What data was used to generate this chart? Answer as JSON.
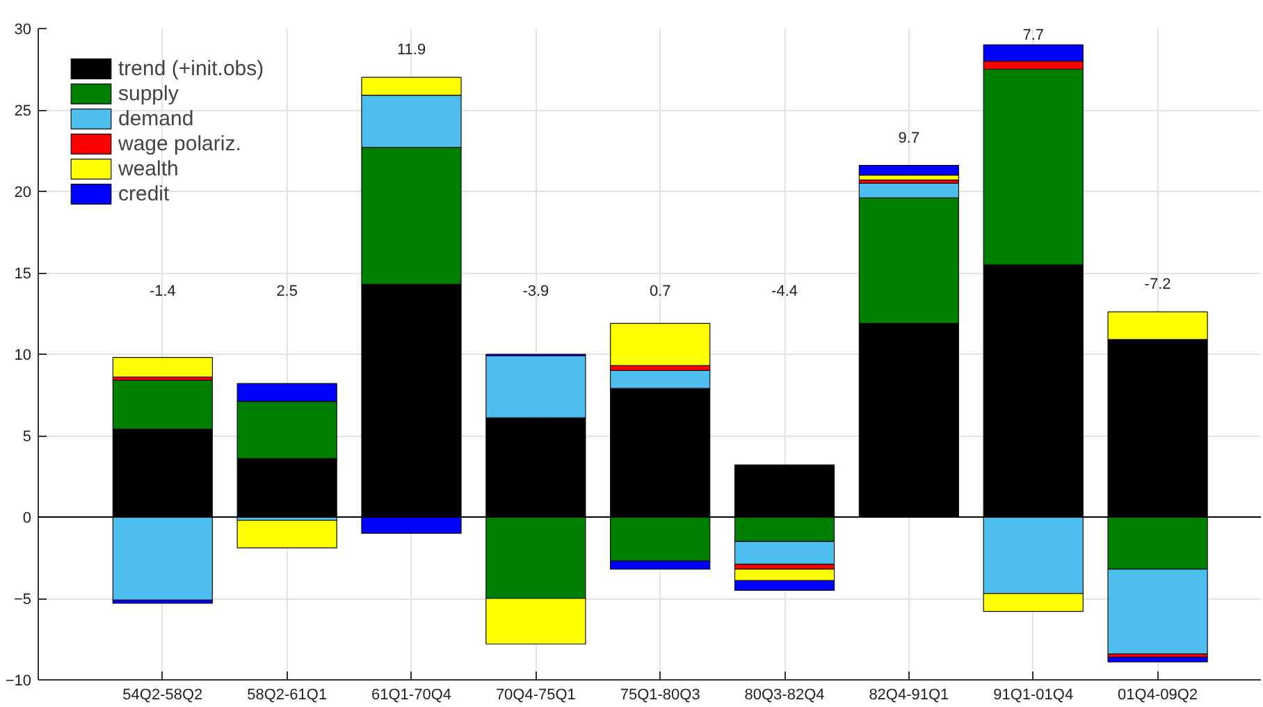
{
  "chart_data": {
    "type": "bar",
    "stacked": true,
    "categories": [
      "54Q2-58Q2",
      "58Q2-61Q1",
      "61Q1-70Q4",
      "70Q4-75Q1",
      "75Q1-80Q3",
      "80Q3-82Q4",
      "82Q4-91Q1",
      "91Q1-01Q4",
      "01Q4-09Q2"
    ],
    "series": [
      {
        "name": "trend (+init.obs)",
        "color": "#000000",
        "values": [
          5.4,
          3.6,
          14.3,
          6.1,
          7.9,
          3.2,
          11.9,
          15.5,
          10.9
        ]
      },
      {
        "name": "supply",
        "color": "#008000",
        "values": [
          3.0,
          3.5,
          8.4,
          -5.0,
          -2.7,
          -1.5,
          7.7,
          12.0,
          -3.2
        ]
      },
      {
        "name": "demand",
        "color": "#4dbeee",
        "values": [
          -5.1,
          -0.2,
          3.2,
          3.8,
          1.1,
          -1.4,
          0.9,
          -4.7,
          -5.2
        ]
      },
      {
        "name": "wage polariz.",
        "color": "#ff0000",
        "values": [
          0.2,
          null,
          0,
          0,
          0.3,
          -0.3,
          0.2,
          0.5,
          -0.2
        ]
      },
      {
        "name": "wealth",
        "color": "#ffff00",
        "values": [
          1.2,
          -1.7,
          1.1,
          -2.8,
          2.6,
          -0.7,
          0.3,
          -1.1,
          1.7
        ]
      },
      {
        "name": "credit",
        "color": "#0000ff",
        "values": [
          -0.2,
          1.1,
          -1.0,
          0.1,
          -0.5,
          -0.6,
          0.6,
          1.0,
          -0.3
        ]
      }
    ],
    "ylim": [
      -10,
      30
    ],
    "yticks": [
      -10,
      -5,
      0,
      5,
      10,
      15,
      20,
      25,
      30
    ],
    "grid": true,
    "legend": "top left",
    "ref_lines": [
      {
        "axis": "y",
        "value": 0,
        "color": "#000000"
      }
    ],
    "annotations": [
      "-1.4",
      "2.5",
      "11.9",
      "-3.9",
      "0.7",
      "-4.4",
      "9.7",
      "7.7",
      "-7.2"
    ]
  }
}
